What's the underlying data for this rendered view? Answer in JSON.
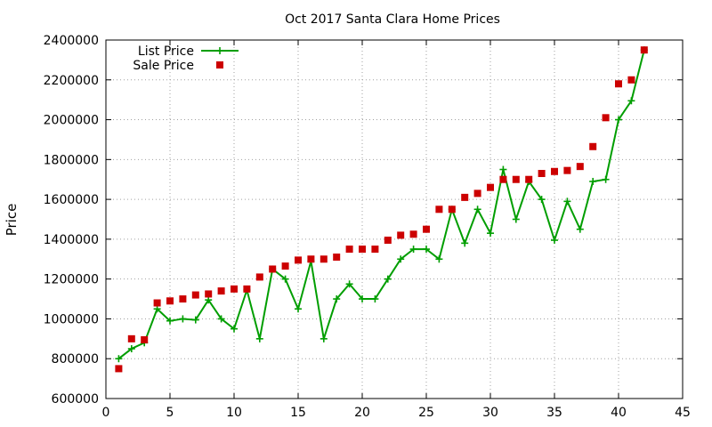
{
  "chart_data": {
    "type": "scatter",
    "title": "Oct 2017 Santa Clara Home Prices",
    "xlabel": "",
    "ylabel": "Price",
    "xlim": [
      0,
      45
    ],
    "ylim": [
      600000,
      2400000
    ],
    "x_ticks": [
      0,
      5,
      10,
      15,
      20,
      25,
      30,
      35,
      40,
      45
    ],
    "y_ticks": [
      600000,
      800000,
      1000000,
      1200000,
      1400000,
      1600000,
      1800000,
      2000000,
      2200000,
      2400000
    ],
    "grid": true,
    "legend_position": "top-left",
    "series": [
      {
        "name": "List Price",
        "style": "linespoints",
        "color": "#009e00",
        "x": [
          1,
          2,
          3,
          4,
          5,
          6,
          7,
          8,
          9,
          10,
          11,
          12,
          13,
          14,
          15,
          16,
          17,
          18,
          19,
          20,
          21,
          22,
          23,
          24,
          25,
          26,
          27,
          28,
          29,
          30,
          31,
          32,
          33,
          34,
          35,
          36,
          37,
          38,
          39,
          40,
          41,
          42
        ],
        "y": [
          800000,
          850000,
          880000,
          1050000,
          990000,
          1000000,
          995000,
          1095000,
          1000000,
          950000,
          1145000,
          900000,
          1250000,
          1200000,
          1050000,
          1290000,
          900000,
          1100000,
          1175000,
          1100000,
          1100000,
          1200000,
          1300000,
          1350000,
          1350000,
          1300000,
          1550000,
          1380000,
          1550000,
          1430000,
          1750000,
          1500000,
          1690000,
          1600000,
          1395000,
          1590000,
          1450000,
          1690000,
          1700000,
          2000000,
          2095000,
          2350000
        ]
      },
      {
        "name": "Sale Price",
        "style": "points",
        "color": "#cc0000",
        "x": [
          1,
          2,
          3,
          4,
          5,
          6,
          7,
          8,
          9,
          10,
          11,
          12,
          13,
          14,
          15,
          16,
          17,
          18,
          19,
          20,
          21,
          22,
          23,
          24,
          25,
          26,
          27,
          28,
          29,
          30,
          31,
          32,
          33,
          34,
          35,
          36,
          37,
          38,
          39,
          40,
          41,
          42
        ],
        "y": [
          750000,
          900000,
          895000,
          1080000,
          1090000,
          1100000,
          1120000,
          1125000,
          1140000,
          1150000,
          1150000,
          1210000,
          1250000,
          1265000,
          1295000,
          1300000,
          1300000,
          1310000,
          1350000,
          1350000,
          1350000,
          1395000,
          1420000,
          1425000,
          1450000,
          1550000,
          1550000,
          1610000,
          1630000,
          1660000,
          1700000,
          1700000,
          1700000,
          1730000,
          1740000,
          1745000,
          1765000,
          1865000,
          2010000,
          2180000,
          2200000,
          2350000
        ]
      }
    ]
  }
}
